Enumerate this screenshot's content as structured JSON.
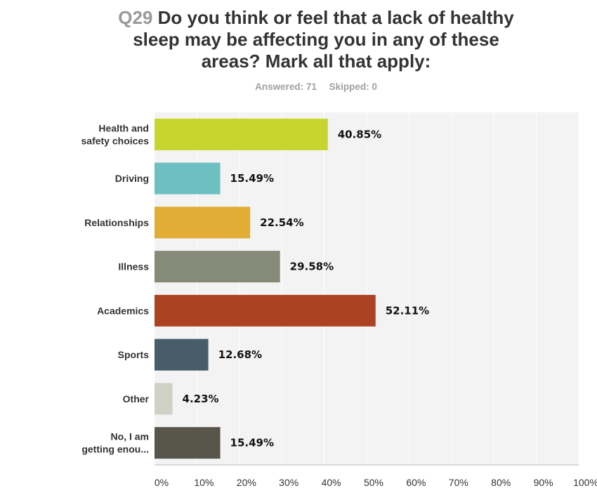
{
  "question": {
    "number": "Q29",
    "text": "Do you think or feel that a lack of healthy sleep may be affecting you in any of these areas? Mark all that apply:"
  },
  "summary": {
    "answered": "Answered: 71",
    "skipped": "Skipped: 0"
  },
  "chart_data": {
    "type": "bar",
    "orientation": "horizontal",
    "categories": [
      [
        "Health and",
        "safety choices"
      ],
      [
        "Driving"
      ],
      [
        "Relationships"
      ],
      [
        "Illness"
      ],
      [
        "Academics"
      ],
      [
        "Sports"
      ],
      [
        "Other"
      ],
      [
        "No, I am",
        "getting enou..."
      ]
    ],
    "values": [
      40.85,
      15.49,
      22.54,
      29.58,
      52.11,
      12.68,
      4.23,
      15.49
    ],
    "value_labels": [
      "40.85%",
      "15.49%",
      "22.54%",
      "29.58%",
      "52.11%",
      "12.68%",
      "4.23%",
      "15.49%"
    ],
    "colors": [
      "#c7d52f",
      "#6dbfc2",
      "#e2ad35",
      "#868a79",
      "#ad4222",
      "#475d6a",
      "#d1d0c5",
      "#58564a"
    ],
    "xlim": [
      0,
      100
    ],
    "xticks": [
      "0%",
      "10%",
      "20%",
      "30%",
      "40%",
      "50%",
      "60%",
      "70%",
      "80%",
      "90%",
      "100%"
    ],
    "grid": true
  }
}
